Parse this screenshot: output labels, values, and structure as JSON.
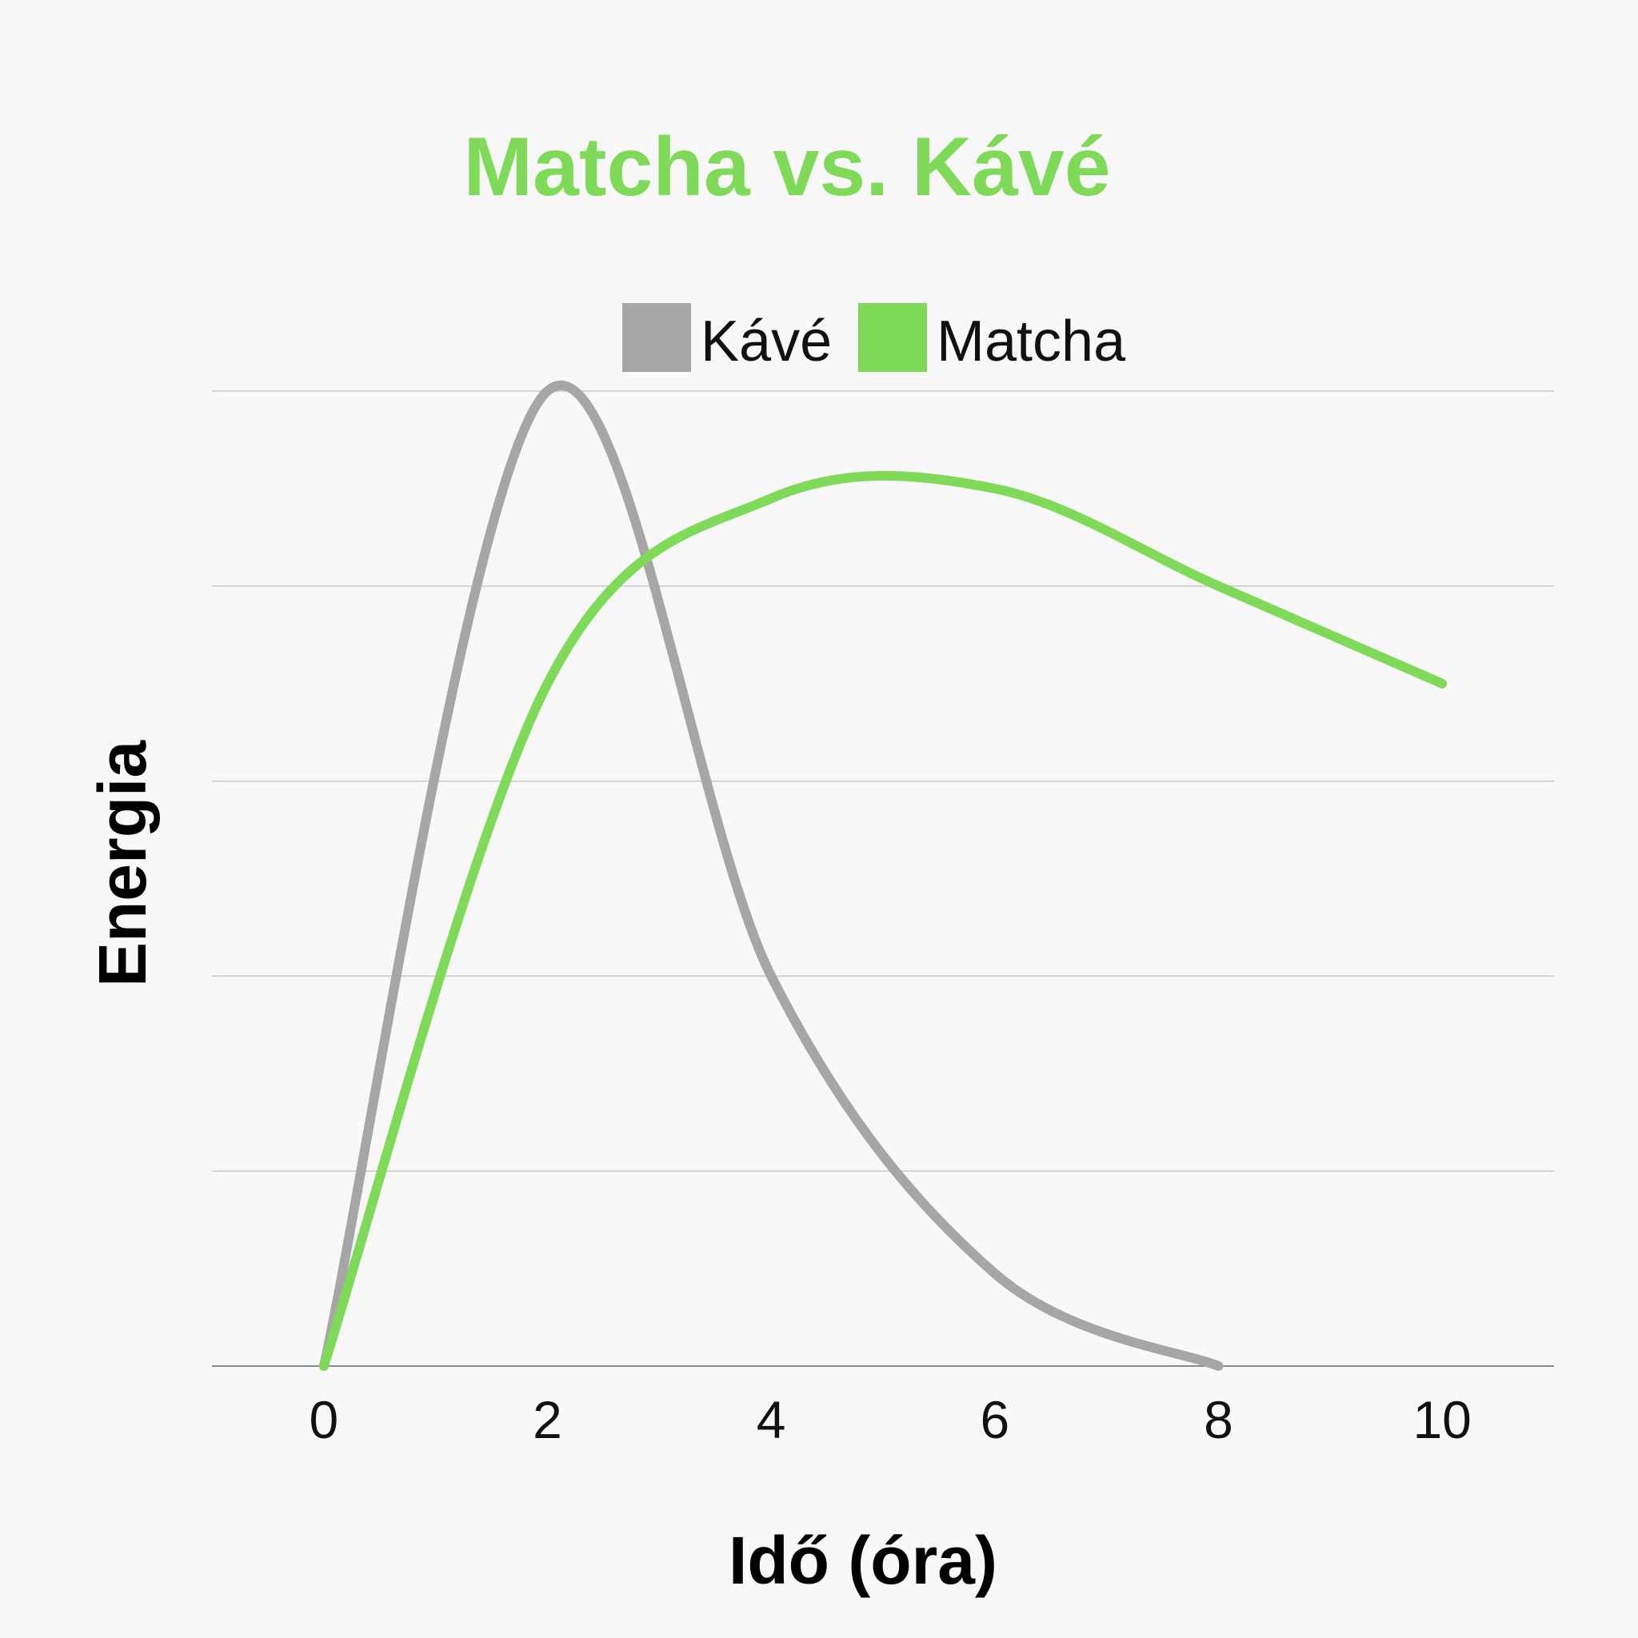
{
  "chart_data": {
    "type": "line",
    "title": "Matcha vs. Kávé",
    "xlabel": "Idő (óra)",
    "ylabel": "Energia",
    "x_ticks": [
      "0",
      "2",
      "4",
      "6",
      "8",
      "10"
    ],
    "xlim": [
      -1,
      11
    ],
    "ylim": [
      0,
      100
    ],
    "grid": true,
    "legend": "top-center",
    "curve": "smooth",
    "series": [
      {
        "name": "Kávé",
        "color": "#a6a6a6",
        "points": [
          [
            0,
            0
          ],
          [
            2,
            100
          ],
          [
            4,
            40
          ],
          [
            6,
            9.5
          ],
          [
            8,
            0
          ]
        ]
      },
      {
        "name": "Matcha",
        "color": "#80da59",
        "points": [
          [
            0,
            0
          ],
          [
            2,
            70
          ],
          [
            4,
            89
          ],
          [
            6,
            90
          ],
          [
            8,
            80
          ],
          [
            10,
            70
          ]
        ]
      }
    ]
  },
  "colors": {
    "title": "#80da59",
    "background": "#f8f8f8"
  }
}
